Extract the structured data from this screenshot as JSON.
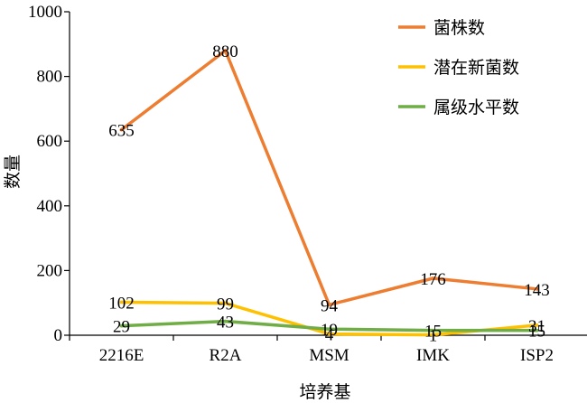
{
  "chart_data": {
    "type": "line",
    "categories": [
      "2216E",
      "R2A",
      "MSM",
      "IMK",
      "ISP2"
    ],
    "series": [
      {
        "name": "菌株数",
        "values": [
          635,
          880,
          94,
          176,
          143
        ],
        "color": "#ED7D31"
      },
      {
        "name": "潜在新菌数",
        "values": [
          102,
          99,
          4,
          1,
          31
        ],
        "color": "#FFC000"
      },
      {
        "name": "属级水平数",
        "values": [
          29,
          43,
          19,
          15,
          15
        ],
        "color": "#70AD47"
      }
    ],
    "title": "",
    "xlabel": "培养基",
    "ylabel": "数量",
    "ylim": [
      0,
      1000
    ],
    "yticks": [
      0,
      200,
      400,
      600,
      800,
      1000
    ],
    "grid": false,
    "legend_position": "top-right",
    "data_labels": true
  }
}
